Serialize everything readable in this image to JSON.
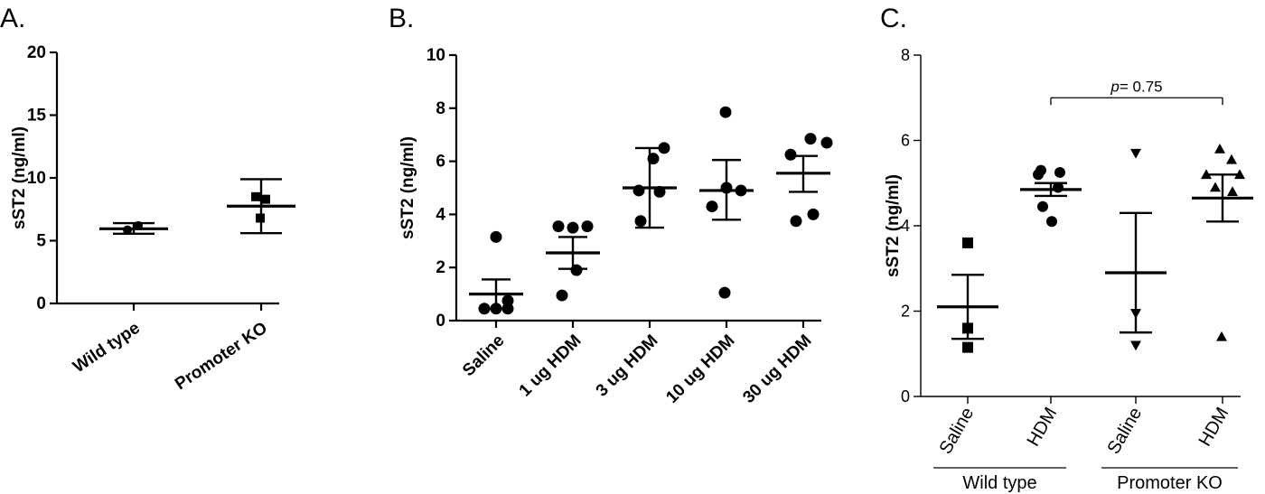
{
  "panels": [
    {
      "letter": "A."
    },
    {
      "letter": "B."
    },
    {
      "letter": "C."
    }
  ],
  "chart_data": [
    {
      "type": "scatter",
      "ylabel": "sST2 (ng/ml)",
      "ylim": [
        0,
        20
      ],
      "yticks": [
        0,
        5,
        10,
        15,
        20
      ],
      "categories": [
        "Wild type",
        "Promoter KO"
      ],
      "groups": [
        {
          "category": "Wild type",
          "marker": "circle",
          "points": [
            5.85,
            6.2
          ],
          "mean": 5.95,
          "err_low": 5.55,
          "err_high": 6.4
        },
        {
          "category": "Promoter KO",
          "marker": "square",
          "points": [
            8.5,
            8.3,
            6.8
          ],
          "mean": 7.75,
          "err_low": 5.6,
          "err_high": 9.9
        }
      ]
    },
    {
      "type": "scatter",
      "ylabel": "sST2 (ng/ml)",
      "ylim": [
        0,
        10
      ],
      "yticks": [
        0,
        2,
        4,
        6,
        8,
        10
      ],
      "categories": [
        "Saline",
        "1 ug HDM",
        "3 ug HDM",
        "10 ug HDM",
        "30 ug HDM"
      ],
      "groups": [
        {
          "category": "Saline",
          "marker": "circle",
          "points": [
            3.15,
            0.75,
            0.45,
            0.45,
            0.45
          ],
          "mean": 1.0,
          "err_low": 0.45,
          "err_high": 1.55
        },
        {
          "category": "1 ug HDM",
          "marker": "circle",
          "points": [
            3.55,
            3.5,
            3.55,
            1.9,
            0.95
          ],
          "mean": 2.55,
          "err_low": 1.95,
          "err_high": 3.15
        },
        {
          "category": "3 ug HDM",
          "marker": "circle",
          "points": [
            6.5,
            6.1,
            4.9,
            4.85,
            3.75
          ],
          "mean": 5.0,
          "err_low": 3.5,
          "err_high": 6.5
        },
        {
          "category": "10 ug HDM",
          "marker": "circle",
          "points": [
            7.85,
            5.0,
            4.9,
            4.3,
            1.05
          ],
          "mean": 4.9,
          "err_low": 3.8,
          "err_high": 6.05
        },
        {
          "category": "30 ug HDM",
          "marker": "circle",
          "points": [
            6.85,
            6.7,
            6.25,
            4.0,
            3.75
          ],
          "mean": 5.55,
          "err_low": 4.85,
          "err_high": 6.2
        }
      ]
    },
    {
      "type": "scatter",
      "ylabel": "sST2 (ng/ml)",
      "ylim": [
        0,
        8
      ],
      "yticks": [
        0,
        2,
        4,
        6,
        8
      ],
      "categories": [
        "Saline",
        "HDM",
        "Saline",
        "HDM"
      ],
      "group_labels": [
        {
          "label": "Wild type",
          "from": 0,
          "to": 1
        },
        {
          "label": "Promoter KO",
          "from": 2,
          "to": 3
        }
      ],
      "groups": [
        {
          "category": "Saline",
          "marker": "square",
          "points": [
            3.6,
            1.6,
            1.15
          ],
          "mean": 2.1,
          "err_low": 1.35,
          "err_high": 2.85
        },
        {
          "category": "HDM",
          "marker": "circle",
          "points": [
            5.3,
            5.25,
            5.2,
            4.9,
            4.45,
            4.1
          ],
          "mean": 4.85,
          "err_low": 4.7,
          "err_high": 5.0
        },
        {
          "category": "Saline",
          "marker": "triangle-down",
          "points": [
            5.7,
            1.95,
            1.2
          ],
          "mean": 2.9,
          "err_low": 1.5,
          "err_high": 4.3
        },
        {
          "category": "HDM",
          "marker": "triangle-up",
          "points": [
            5.8,
            5.55,
            5.2,
            5.2,
            4.9,
            4.8,
            1.4
          ],
          "mean": 4.65,
          "err_low": 4.1,
          "err_high": 5.2
        }
      ],
      "comparison": {
        "from": 1,
        "to": 3,
        "y": 7.0,
        "p_symbol": "p",
        "p_text": "= 0.75"
      }
    }
  ]
}
